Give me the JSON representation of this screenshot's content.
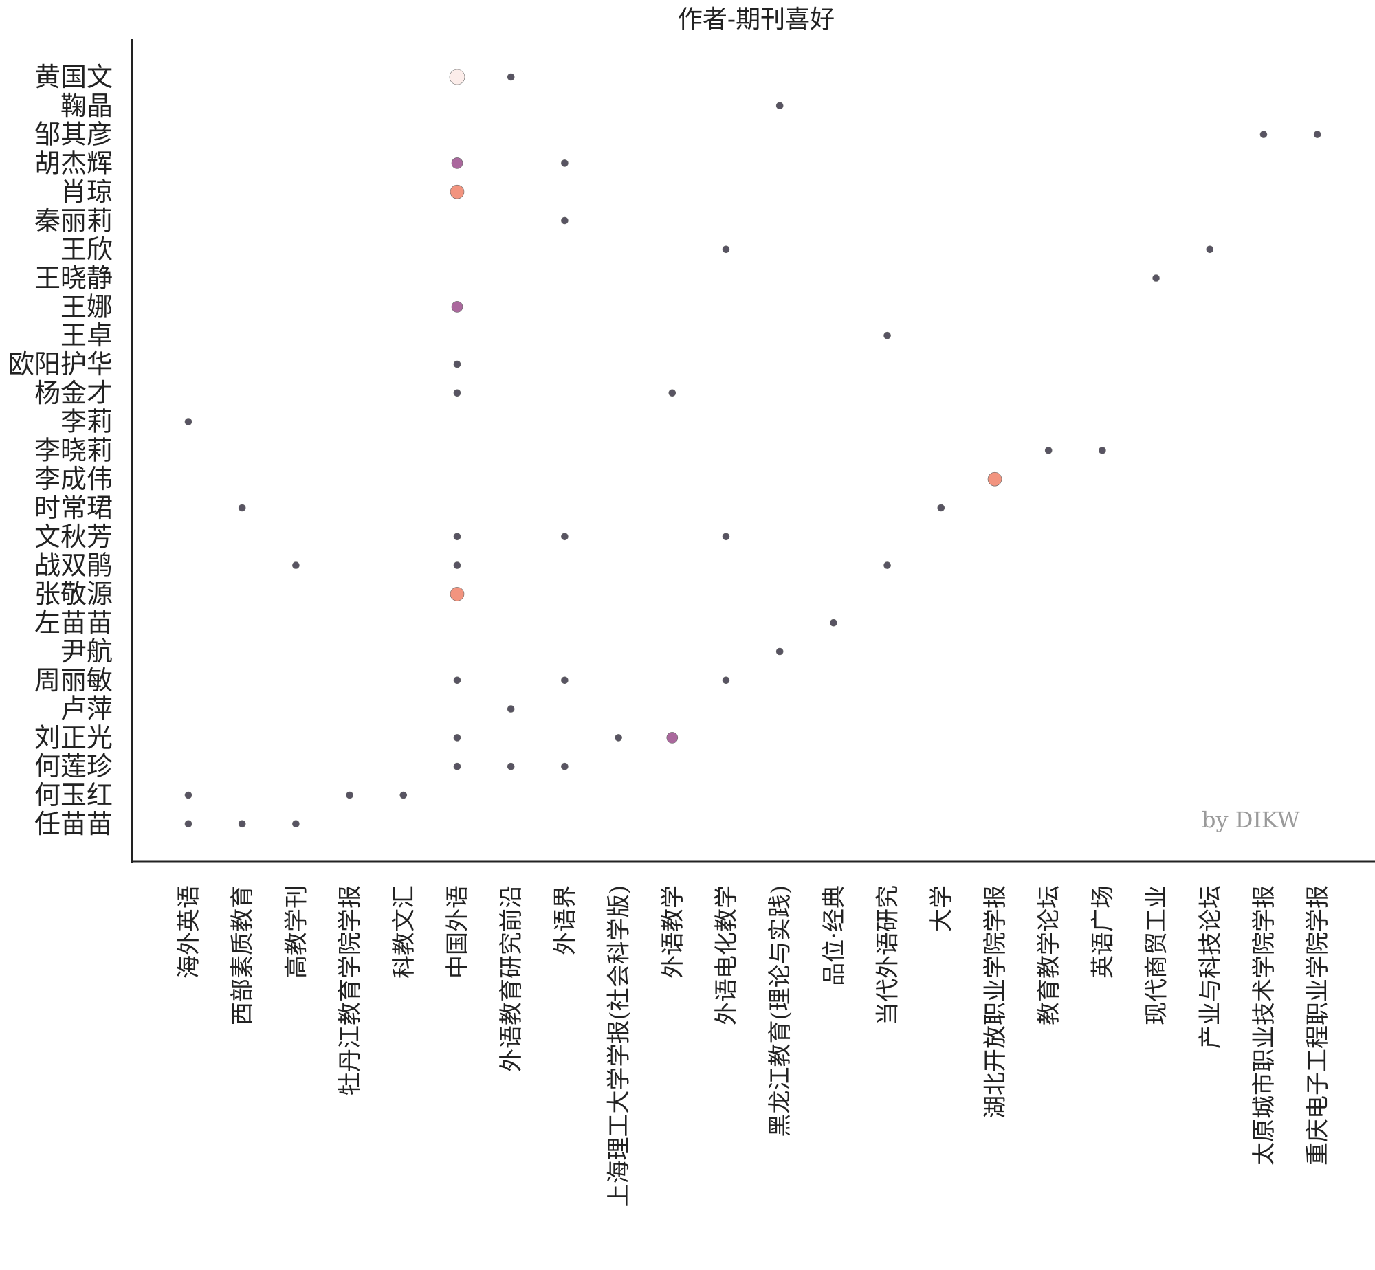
{
  "chart_data": {
    "type": "scatter",
    "title": "作者-期刊喜好",
    "xlabel": "",
    "ylabel": "",
    "watermark": "by DIKW",
    "grid": false,
    "legend": "none",
    "y_categories": [
      "黄国文",
      "鞠晶",
      "邹其彦",
      "胡杰辉",
      "肖琼",
      "秦丽莉",
      "王欣",
      "王晓静",
      "王娜",
      "王卓",
      "欧阳护华",
      "杨金才",
      "李莉",
      "李晓莉",
      "李成伟",
      "时常珺",
      "文秋芳",
      "战双鹃",
      "张敬源",
      "左苗苗",
      "尹航",
      "周丽敏",
      "卢萍",
      "刘正光",
      "何莲珍",
      "何玉红",
      "任苗苗"
    ],
    "x_categories": [
      "海外英语",
      "西部素质教育",
      "高教学刊",
      "牡丹江教育学院学报",
      "科教文汇",
      "中国外语",
      "外语教育研究前沿",
      "外语界",
      "上海理工大学学报(社会科学版)",
      "外语教学",
      "外语电化教学",
      "黑龙江教育(理论与实践)",
      "品位·经典",
      "当代外语研究",
      "大学",
      "湖北开放职业学院学报",
      "教育教学论坛",
      "英语广场",
      "现代商贸工业",
      "产业与科技论坛",
      "太原城市职业技术学院学报",
      "重庆电子工程职业学院学报"
    ],
    "colors": {
      "count_1": "#3b3646",
      "count_2": "#9b4e8c",
      "count_3": "#f08168",
      "count_4": "#fbeae6"
    },
    "points": [
      {
        "author": "黄国文",
        "journal": "中国外语",
        "count": 4
      },
      {
        "author": "黄国文",
        "journal": "外语教育研究前沿",
        "count": 1
      },
      {
        "author": "鞠晶",
        "journal": "黑龙江教育(理论与实践)",
        "count": 1
      },
      {
        "author": "邹其彦",
        "journal": "太原城市职业技术学院学报",
        "count": 1
      },
      {
        "author": "邹其彦",
        "journal": "重庆电子工程职业学院学报",
        "count": 1
      },
      {
        "author": "胡杰辉",
        "journal": "中国外语",
        "count": 2
      },
      {
        "author": "胡杰辉",
        "journal": "外语界",
        "count": 1
      },
      {
        "author": "肖琼",
        "journal": "中国外语",
        "count": 3
      },
      {
        "author": "秦丽莉",
        "journal": "外语界",
        "count": 1
      },
      {
        "author": "王欣",
        "journal": "外语电化教学",
        "count": 1
      },
      {
        "author": "王欣",
        "journal": "产业与科技论坛",
        "count": 1
      },
      {
        "author": "王晓静",
        "journal": "现代商贸工业",
        "count": 1
      },
      {
        "author": "王娜",
        "journal": "中国外语",
        "count": 2
      },
      {
        "author": "王卓",
        "journal": "当代外语研究",
        "count": 1
      },
      {
        "author": "欧阳护华",
        "journal": "中国外语",
        "count": 1
      },
      {
        "author": "杨金才",
        "journal": "中国外语",
        "count": 1
      },
      {
        "author": "杨金才",
        "journal": "外语教学",
        "count": 1
      },
      {
        "author": "李莉",
        "journal": "海外英语",
        "count": 1
      },
      {
        "author": "李晓莉",
        "journal": "教育教学论坛",
        "count": 1
      },
      {
        "author": "李晓莉",
        "journal": "英语广场",
        "count": 1
      },
      {
        "author": "李成伟",
        "journal": "湖北开放职业学院学报",
        "count": 3
      },
      {
        "author": "时常珺",
        "journal": "西部素质教育",
        "count": 1
      },
      {
        "author": "时常珺",
        "journal": "大学",
        "count": 1
      },
      {
        "author": "文秋芳",
        "journal": "中国外语",
        "count": 1
      },
      {
        "author": "文秋芳",
        "journal": "外语界",
        "count": 1
      },
      {
        "author": "文秋芳",
        "journal": "外语电化教学",
        "count": 1
      },
      {
        "author": "战双鹃",
        "journal": "高教学刊",
        "count": 1
      },
      {
        "author": "战双鹃",
        "journal": "中国外语",
        "count": 1
      },
      {
        "author": "战双鹃",
        "journal": "当代外语研究",
        "count": 1
      },
      {
        "author": "张敬源",
        "journal": "中国外语",
        "count": 3
      },
      {
        "author": "左苗苗",
        "journal": "品位·经典",
        "count": 1
      },
      {
        "author": "尹航",
        "journal": "黑龙江教育(理论与实践)",
        "count": 1
      },
      {
        "author": "周丽敏",
        "journal": "中国外语",
        "count": 1
      },
      {
        "author": "周丽敏",
        "journal": "外语界",
        "count": 1
      },
      {
        "author": "周丽敏",
        "journal": "外语电化教学",
        "count": 1
      },
      {
        "author": "卢萍",
        "journal": "外语教育研究前沿",
        "count": 1
      },
      {
        "author": "刘正光",
        "journal": "中国外语",
        "count": 1
      },
      {
        "author": "刘正光",
        "journal": "上海理工大学学报(社会科学版)",
        "count": 1
      },
      {
        "author": "刘正光",
        "journal": "外语教学",
        "count": 2
      },
      {
        "author": "何莲珍",
        "journal": "中国外语",
        "count": 1
      },
      {
        "author": "何莲珍",
        "journal": "外语教育研究前沿",
        "count": 1
      },
      {
        "author": "何莲珍",
        "journal": "外语界",
        "count": 1
      },
      {
        "author": "何玉红",
        "journal": "海外英语",
        "count": 1
      },
      {
        "author": "何玉红",
        "journal": "牡丹江教育学院学报",
        "count": 1
      },
      {
        "author": "何玉红",
        "journal": "科教文汇",
        "count": 1
      },
      {
        "author": "任苗苗",
        "journal": "海外英语",
        "count": 1
      },
      {
        "author": "任苗苗",
        "journal": "西部素质教育",
        "count": 1
      },
      {
        "author": "任苗苗",
        "journal": "高教学刊",
        "count": 1
      }
    ]
  }
}
